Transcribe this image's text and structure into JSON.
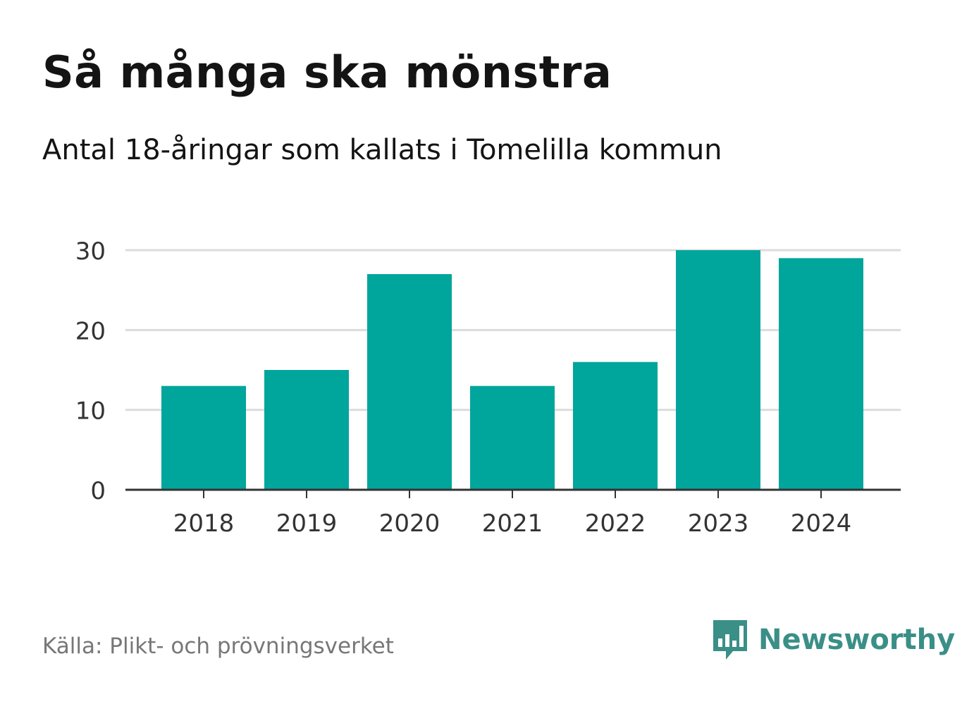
{
  "title": "Så många ska mönstra",
  "subtitle": "Antal 18-åringar som kallats i Tomelilla kommun",
  "source": "Källa: Plikt- och prövningsverket",
  "brand": {
    "name": "Newsworthy",
    "icon": "bar-chart-speech-bubble-icon",
    "color": "#3a8f87"
  },
  "colors": {
    "bar": "#00a59b",
    "grid": "#dcdcdc",
    "axis": "#333333",
    "tick_text": "#333333"
  },
  "chart_data": {
    "type": "bar",
    "categories": [
      "2018",
      "2019",
      "2020",
      "2021",
      "2022",
      "2023",
      "2024"
    ],
    "values": [
      13,
      15,
      27,
      13,
      16,
      30,
      29
    ],
    "ylim": [
      0,
      30
    ],
    "yticks": [
      0,
      10,
      20,
      30
    ],
    "xlabel": "",
    "ylabel": "",
    "grid": true,
    "legend": "none"
  }
}
